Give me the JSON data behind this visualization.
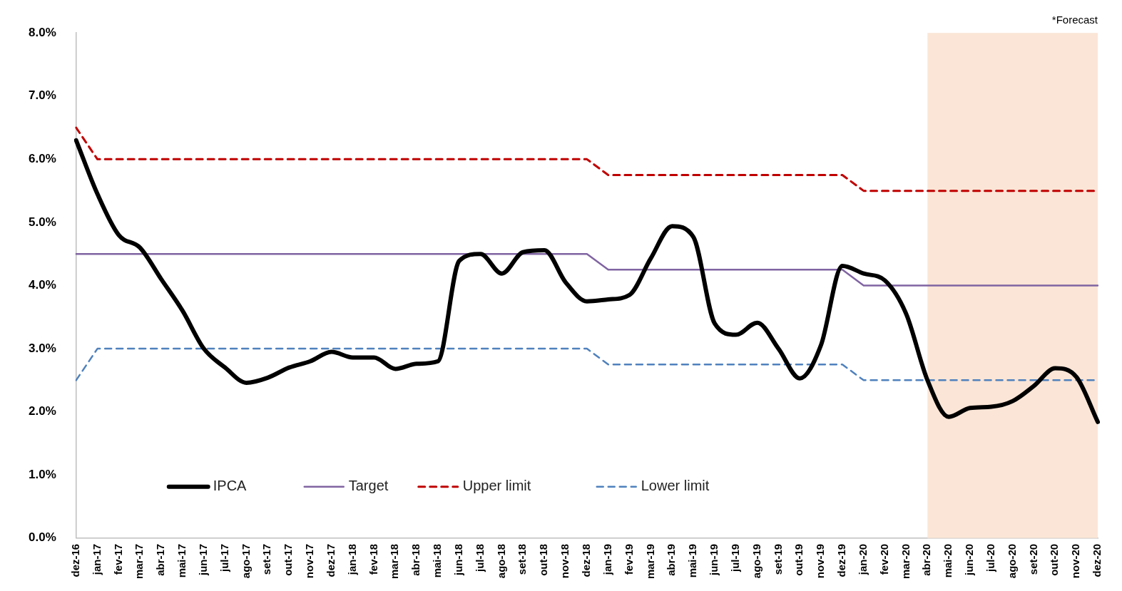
{
  "chart_data": {
    "type": "line",
    "categories": [
      "dez-16",
      "jan-17",
      "fev-17",
      "mar-17",
      "abr-17",
      "mai-17",
      "jun-17",
      "jul-17",
      "ago-17",
      "set-17",
      "out-17",
      "nov-17",
      "dez-17",
      "jan-18",
      "fev-18",
      "mar-18",
      "abr-18",
      "mai-18",
      "jun-18",
      "jul-18",
      "ago-18",
      "set-18",
      "out-18",
      "nov-18",
      "dez-18",
      "jan-19",
      "fev-19",
      "mar-19",
      "abr-19",
      "mai-19",
      "jun-19",
      "jul-19",
      "ago-19",
      "set-19",
      "out-19",
      "nov-19",
      "dez-19",
      "jan-20",
      "fev-20",
      "mar-20",
      "abr-20",
      "mai-20",
      "jun-20",
      "jul-20",
      "ago-20",
      "set-20",
      "out-20",
      "nov-20",
      "dez-20"
    ],
    "series": [
      {
        "name": "IPCA",
        "color": "#000000",
        "line_style": "solid",
        "values": [
          6.3,
          5.45,
          4.8,
          4.6,
          4.1,
          3.6,
          3.0,
          2.7,
          2.46,
          2.54,
          2.7,
          2.8,
          2.95,
          2.86,
          2.86,
          2.68,
          2.76,
          2.8,
          4.39,
          4.5,
          4.19,
          4.53,
          4.56,
          4.05,
          3.75,
          3.78,
          3.85,
          4.43,
          4.94,
          4.77,
          3.4,
          3.22,
          3.41,
          3.0,
          2.53,
          3.06,
          4.31,
          4.19,
          4.08,
          3.55,
          2.5,
          1.92,
          2.06,
          2.08,
          2.17,
          2.41,
          2.69,
          2.55,
          1.84
        ]
      },
      {
        "name": "Target",
        "color": "#8064a2",
        "line_style": "solid",
        "values": [
          4.5,
          4.5,
          4.5,
          4.5,
          4.5,
          4.5,
          4.5,
          4.5,
          4.5,
          4.5,
          4.5,
          4.5,
          4.5,
          4.5,
          4.5,
          4.5,
          4.5,
          4.5,
          4.5,
          4.5,
          4.5,
          4.5,
          4.5,
          4.5,
          4.5,
          4.25,
          4.25,
          4.25,
          4.25,
          4.25,
          4.25,
          4.25,
          4.25,
          4.25,
          4.25,
          4.25,
          4.25,
          4.0,
          4.0,
          4.0,
          4.0,
          4.0,
          4.0,
          4.0,
          4.0,
          4.0,
          4.0,
          4.0,
          4.0
        ]
      },
      {
        "name": "Upper limit",
        "color": "#c00000",
        "line_style": "dashed",
        "values": [
          6.5,
          6.0,
          6.0,
          6.0,
          6.0,
          6.0,
          6.0,
          6.0,
          6.0,
          6.0,
          6.0,
          6.0,
          6.0,
          6.0,
          6.0,
          6.0,
          6.0,
          6.0,
          6.0,
          6.0,
          6.0,
          6.0,
          6.0,
          6.0,
          6.0,
          5.75,
          5.75,
          5.75,
          5.75,
          5.75,
          5.75,
          5.75,
          5.75,
          5.75,
          5.75,
          5.75,
          5.75,
          5.5,
          5.5,
          5.5,
          5.5,
          5.5,
          5.5,
          5.5,
          5.5,
          5.5,
          5.5,
          5.5,
          5.5
        ]
      },
      {
        "name": "Lower limit",
        "color": "#4f81bd",
        "line_style": "dashed",
        "values": [
          2.5,
          3.0,
          3.0,
          3.0,
          3.0,
          3.0,
          3.0,
          3.0,
          3.0,
          3.0,
          3.0,
          3.0,
          3.0,
          3.0,
          3.0,
          3.0,
          3.0,
          3.0,
          3.0,
          3.0,
          3.0,
          3.0,
          3.0,
          3.0,
          3.0,
          2.75,
          2.75,
          2.75,
          2.75,
          2.75,
          2.75,
          2.75,
          2.75,
          2.75,
          2.75,
          2.75,
          2.75,
          2.5,
          2.5,
          2.5,
          2.5,
          2.5,
          2.5,
          2.5,
          2.5,
          2.5,
          2.5,
          2.5,
          2.5
        ]
      }
    ],
    "ylim": [
      0,
      8
    ],
    "yticks": [
      {
        "value": 0,
        "label": "0.0%"
      },
      {
        "value": 1,
        "label": "1.0%"
      },
      {
        "value": 2,
        "label": "2.0%"
      },
      {
        "value": 3,
        "label": "3.0%"
      },
      {
        "value": 4,
        "label": "4.0%"
      },
      {
        "value": 5,
        "label": "5.0%"
      },
      {
        "value": 6,
        "label": "6.0%"
      },
      {
        "value": 7,
        "label": "7.0%"
      },
      {
        "value": 8,
        "label": "8.0%"
      }
    ],
    "bands": [
      {
        "axis": "x",
        "from": "abr-20",
        "to": "dez-20",
        "label": "*Forecast",
        "color": "#fbe5d6"
      }
    ],
    "grid": false,
    "legend": "bottom left",
    "marker": "none"
  }
}
